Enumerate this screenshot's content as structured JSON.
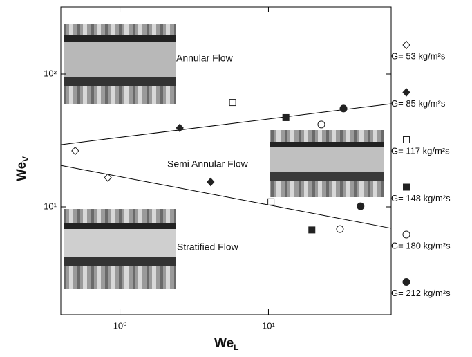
{
  "chart_data": {
    "type": "scatter",
    "xlabel": [
      "We",
      "L"
    ],
    "ylabel": [
      "We",
      "V"
    ],
    "log_x": true,
    "log_y": true,
    "xlim": [
      0.4,
      67
    ],
    "ylim": [
      1.54,
      320
    ],
    "xticks": [
      {
        "value": 1,
        "label": "10⁰"
      },
      {
        "value": 10,
        "label": "10¹"
      }
    ],
    "yticks": [
      {
        "value": 10,
        "label": "10¹"
      },
      {
        "value": 100,
        "label": "10²"
      }
    ],
    "series": [
      {
        "name": "G= 53 kg/m²s",
        "marker": "diamond",
        "filled": false,
        "color": "#222",
        "x": [
          0.5,
          0.83
        ],
        "values": [
          26.4,
          16.6
        ]
      },
      {
        "name": "G= 85 kg/m²s",
        "marker": "diamond",
        "filled": true,
        "color": "#222",
        "x": [
          2.53,
          4.08
        ],
        "values": [
          39.3,
          15.4
        ]
      },
      {
        "name": "G= 117 kg/m²s",
        "marker": "square",
        "filled": false,
        "color": "#222",
        "x": [
          5.74,
          10.4
        ],
        "values": [
          61.1,
          10.9
        ]
      },
      {
        "name": "G= 148 kg/m²s",
        "marker": "square",
        "filled": true,
        "color": "#222",
        "x": [
          13.1,
          19.6
        ],
        "values": [
          47,
          6.7
        ]
      },
      {
        "name": "G= 180 kg/m²s",
        "marker": "circle",
        "filled": false,
        "color": "#222",
        "x": [
          22.7,
          30.3
        ],
        "values": [
          41.7,
          6.8
        ]
      },
      {
        "name": "G= 212 kg/m²s",
        "marker": "circle",
        "filled": true,
        "color": "#222",
        "x": [
          32,
          41.7
        ],
        "values": [
          55,
          10.1
        ]
      }
    ],
    "trend_lines": [
      {
        "x": [
          0.4,
          67
        ],
        "values": [
          29.4,
          59.7
        ]
      },
      {
        "x": [
          0.4,
          67
        ],
        "values": [
          20.5,
          6.9
        ]
      }
    ],
    "annotations": [
      "Annular Flow",
      "Semi Annular Flow",
      "Stratified Flow"
    ]
  }
}
